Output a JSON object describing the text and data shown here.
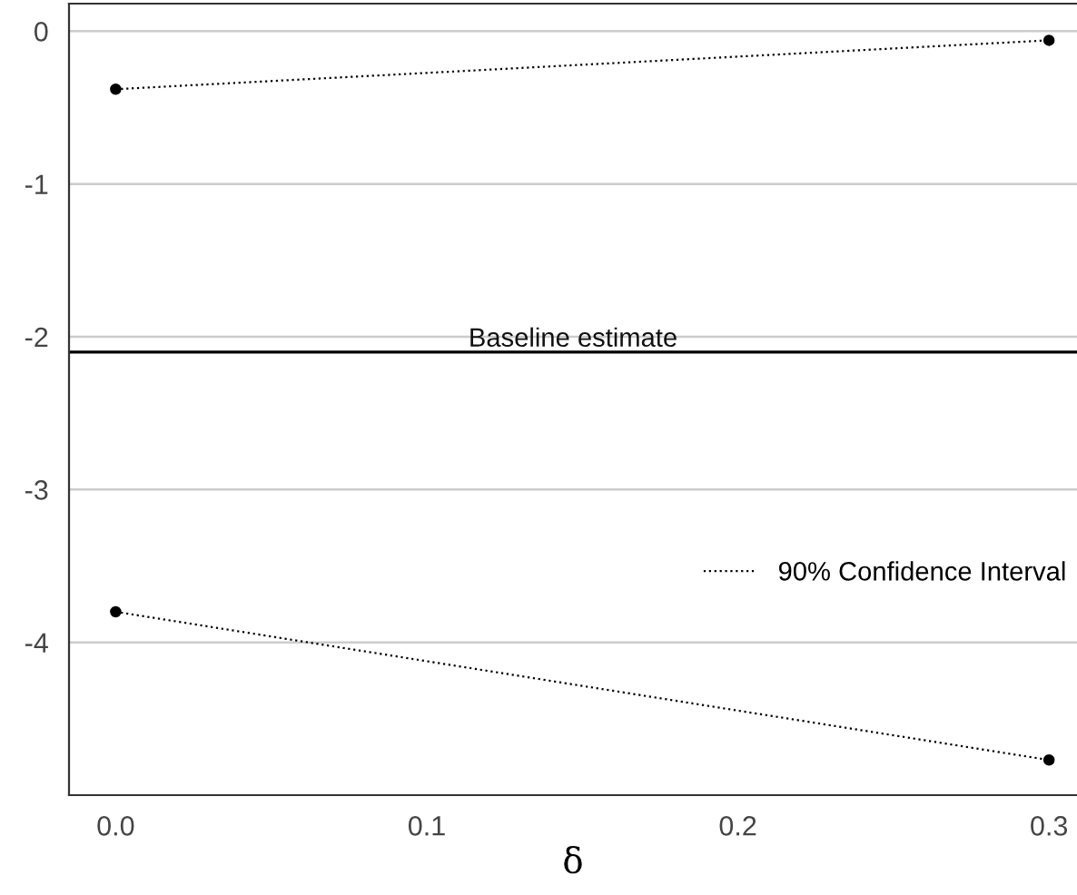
{
  "chart_data": {
    "type": "line",
    "xlabel": "δ",
    "x": [
      0,
      0.3
    ],
    "series": [
      {
        "name": "90% Confidence Interval",
        "color": "#000000",
        "values": [
          -0.38,
          -0.06
        ]
      },
      {
        "color": "#000000",
        "values": [
          -3.8,
          -4.77
        ]
      }
    ],
    "xlim": [
      -0.015,
      0.309
    ],
    "ylim": [
      -5.0,
      0.18
    ],
    "xticks": [
      {
        "value": 0,
        "label": "0.0"
      },
      0.1,
      0.2,
      0.3
    ],
    "yticks": [
      0,
      -1,
      -2,
      -3,
      -4
    ],
    "ref_lines": [
      {
        "axis": "y",
        "value": -2.1,
        "label": "Baseline estimate",
        "color": "#000000"
      }
    ],
    "grid": "y",
    "legend": "right",
    "marker": "circle",
    "line_style": "dotted"
  }
}
